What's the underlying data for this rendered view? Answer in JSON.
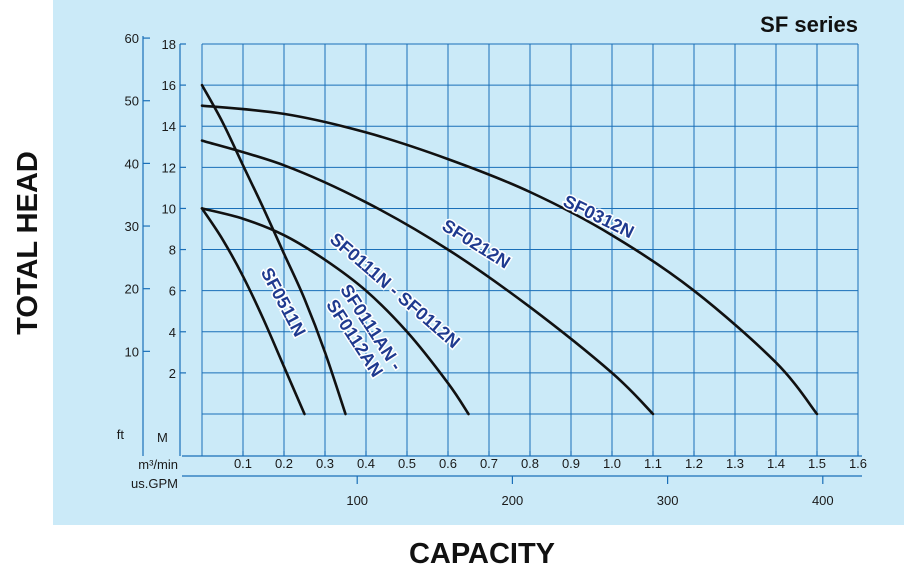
{
  "chart_data": {
    "type": "line",
    "title": "SF series",
    "xlabel": "CAPACITY",
    "ylabel": "TOTAL HEAD",
    "x_unit_primary": "m³/min",
    "x_unit_secondary": "us.GPM",
    "y_unit_primary": "M",
    "y_unit_secondary": "ft",
    "xlim": [
      0,
      1.6
    ],
    "ylim": [
      0,
      18
    ],
    "x_ticks": [
      0.1,
      0.2,
      0.3,
      0.4,
      0.5,
      0.6,
      0.7,
      0.8,
      0.9,
      1.0,
      1.1,
      1.2,
      1.3,
      1.4,
      1.5,
      1.6
    ],
    "x_tick_labels": [
      "0.1",
      "0.2",
      "0.3",
      "0.4",
      "0.5",
      "0.6",
      "0.7",
      "0.8",
      "0.9",
      "1.0",
      "1.1",
      "1.2",
      "1.3",
      "1.4",
      "1.5",
      "1.6"
    ],
    "y_ticks": [
      2,
      4,
      6,
      8,
      10,
      12,
      14,
      16,
      18
    ],
    "y_tick_labels": [
      "2",
      "4",
      "6",
      "8",
      "10",
      "12",
      "14",
      "16",
      "18"
    ],
    "gpm_ticks": [
      100,
      200,
      300,
      400
    ],
    "gpm_tick_labels": [
      "100",
      "200",
      "300",
      "400"
    ],
    "ft_ticks": [
      10,
      20,
      30,
      40,
      50,
      60
    ],
    "ft_tick_labels": [
      "10",
      "20",
      "30",
      "40",
      "50",
      "60"
    ],
    "grid": true,
    "series": [
      {
        "name": "SF0511N",
        "label_lines": [
          "SF0511N"
        ],
        "x": [
          0,
          0.05,
          0.1,
          0.15,
          0.2,
          0.25
        ],
        "y": [
          10,
          8.5,
          6.7,
          4.6,
          2.3,
          0
        ]
      },
      {
        "name": "SF0111AN - SF0112AN",
        "label_lines": [
          "SF0111AN -",
          "SF0112AN"
        ],
        "x": [
          0,
          0.05,
          0.1,
          0.15,
          0.2,
          0.25,
          0.3,
          0.35
        ],
        "y": [
          16,
          14.2,
          12.1,
          10,
          7.8,
          5.6,
          3,
          0
        ]
      },
      {
        "name": "SF0111N - SF0112N",
        "label_lines": [
          "SF0111N - SF0112N"
        ],
        "x": [
          0,
          0.1,
          0.2,
          0.3,
          0.4,
          0.5,
          0.6,
          0.65
        ],
        "y": [
          10,
          9.5,
          8.7,
          7.5,
          6,
          4,
          1.5,
          0
        ]
      },
      {
        "name": "SF0212N",
        "label_lines": [
          "SF0212N"
        ],
        "x": [
          0,
          0.2,
          0.4,
          0.6,
          0.8,
          1.0,
          1.1
        ],
        "y": [
          13.3,
          12.1,
          10.3,
          8,
          5.2,
          2,
          0
        ]
      },
      {
        "name": "SF0312N",
        "label_lines": [
          "SF0312N"
        ],
        "x": [
          0,
          0.2,
          0.4,
          0.6,
          0.8,
          1.0,
          1.2,
          1.4,
          1.5
        ],
        "y": [
          15,
          14.6,
          13.7,
          12.4,
          10.8,
          8.7,
          6,
          2.5,
          0
        ]
      }
    ]
  }
}
